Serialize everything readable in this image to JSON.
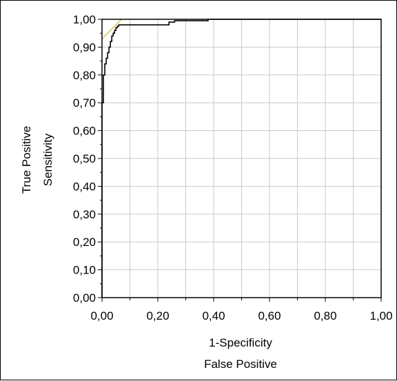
{
  "chart_data": {
    "type": "line",
    "title": "",
    "xlabel": [
      "1-Specificity",
      "False Positive"
    ],
    "ylabel": [
      "True Positive",
      "Sensitivity"
    ],
    "xlim": [
      0,
      1
    ],
    "ylim": [
      0,
      1
    ],
    "x_ticks": [
      "0,00",
      "0,20",
      "0,40",
      "0,60",
      "0,80",
      "1,00"
    ],
    "y_ticks": [
      "0,00",
      "0,10",
      "0,20",
      "0,30",
      "0,40",
      "0,50",
      "0,60",
      "0,70",
      "0,80",
      "0,90",
      "1,00"
    ],
    "grid": true,
    "legend": "none",
    "colors": {
      "roc": "#000000",
      "reference": "#e0d27a",
      "grid": "#c8c8c8"
    },
    "series": [
      {
        "x": [
          0.0,
          0.0,
          0.005,
          0.005,
          0.01,
          0.01,
          0.015,
          0.015,
          0.02,
          0.02,
          0.025,
          0.025,
          0.03,
          0.03,
          0.035,
          0.035,
          0.04,
          0.04,
          0.045,
          0.045,
          0.05,
          0.05,
          0.055,
          0.055,
          0.06,
          0.06,
          0.065,
          0.065,
          0.075,
          0.075,
          0.24,
          0.24,
          0.26,
          0.26,
          0.38,
          0.38,
          1.0
        ],
        "y": [
          0.0,
          0.7,
          0.7,
          0.8,
          0.8,
          0.84,
          0.84,
          0.86,
          0.86,
          0.88,
          0.88,
          0.9,
          0.9,
          0.92,
          0.92,
          0.94,
          0.94,
          0.95,
          0.95,
          0.96,
          0.96,
          0.97,
          0.97,
          0.975,
          0.975,
          0.98,
          0.98,
          0.98,
          0.98,
          0.98,
          0.98,
          0.99,
          0.99,
          0.995,
          0.995,
          1.0,
          1.0
        ]
      },
      {
        "x": [
          0.0,
          0.07
        ],
        "y": [
          0.93,
          1.0
        ]
      }
    ]
  }
}
